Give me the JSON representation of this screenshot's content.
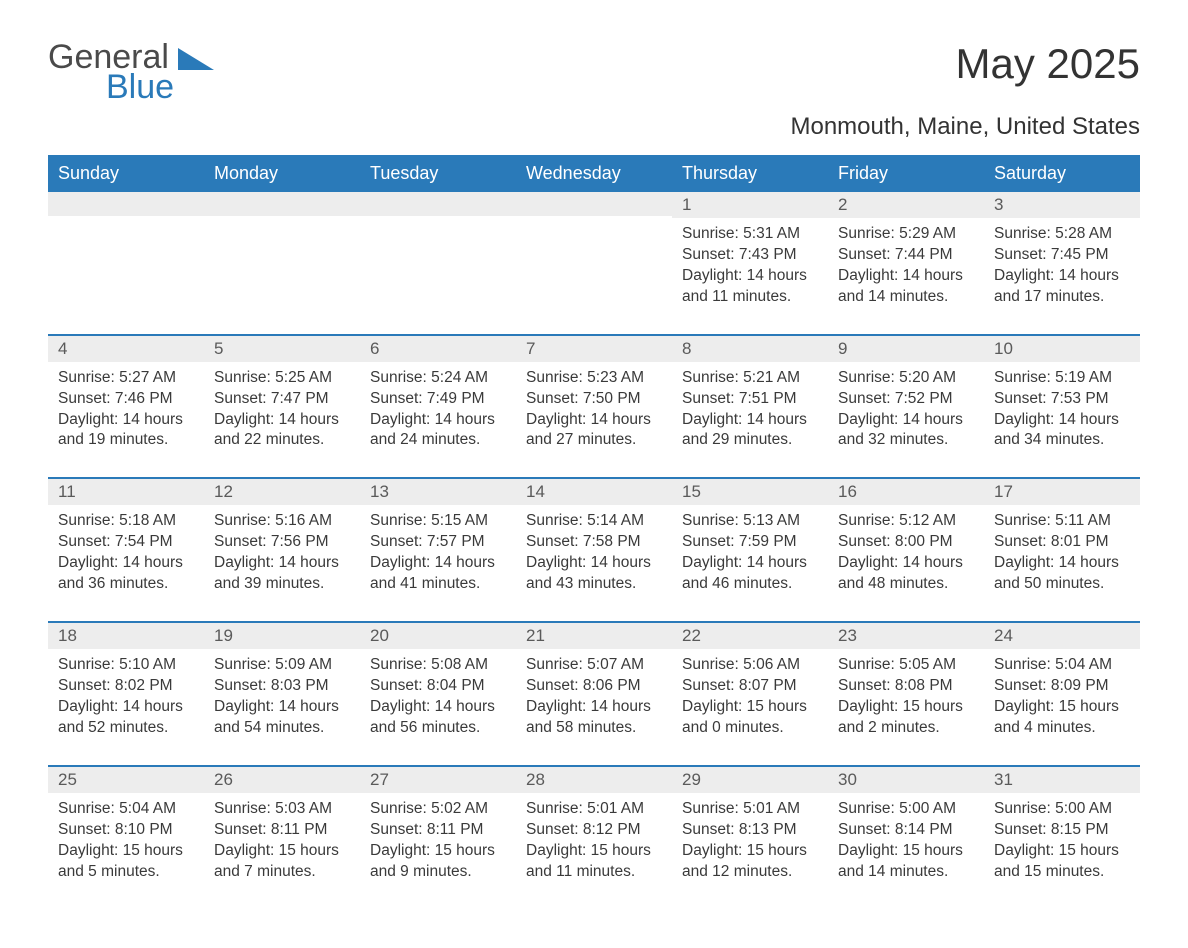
{
  "brand": {
    "word1": "General",
    "word2": "Blue"
  },
  "title": "May 2025",
  "location": "Monmouth, Maine, United States",
  "colors": {
    "header_bg": "#2a7ab9",
    "header_text": "#ffffff",
    "daynum_bg": "#ededed",
    "daynum_text": "#5a5a5a",
    "body_text": "#3a3a3a",
    "page_bg": "#ffffff",
    "row_border": "#2a7ab9"
  },
  "typography": {
    "title_fontsize": 42,
    "location_fontsize": 24,
    "header_fontsize": 18,
    "daynum_fontsize": 17,
    "body_fontsize": 15.5
  },
  "labels": {
    "sunrise": "Sunrise:",
    "sunset": "Sunset:",
    "daylight": "Daylight:"
  },
  "weekdays": [
    "Sunday",
    "Monday",
    "Tuesday",
    "Wednesday",
    "Thursday",
    "Friday",
    "Saturday"
  ],
  "leading_blanks": 4,
  "days": [
    {
      "n": 1,
      "sunrise": "5:31 AM",
      "sunset": "7:43 PM",
      "daylight": "14 hours and 11 minutes."
    },
    {
      "n": 2,
      "sunrise": "5:29 AM",
      "sunset": "7:44 PM",
      "daylight": "14 hours and 14 minutes."
    },
    {
      "n": 3,
      "sunrise": "5:28 AM",
      "sunset": "7:45 PM",
      "daylight": "14 hours and 17 minutes."
    },
    {
      "n": 4,
      "sunrise": "5:27 AM",
      "sunset": "7:46 PM",
      "daylight": "14 hours and 19 minutes."
    },
    {
      "n": 5,
      "sunrise": "5:25 AM",
      "sunset": "7:47 PM",
      "daylight": "14 hours and 22 minutes."
    },
    {
      "n": 6,
      "sunrise": "5:24 AM",
      "sunset": "7:49 PM",
      "daylight": "14 hours and 24 minutes."
    },
    {
      "n": 7,
      "sunrise": "5:23 AM",
      "sunset": "7:50 PM",
      "daylight": "14 hours and 27 minutes."
    },
    {
      "n": 8,
      "sunrise": "5:21 AM",
      "sunset": "7:51 PM",
      "daylight": "14 hours and 29 minutes."
    },
    {
      "n": 9,
      "sunrise": "5:20 AM",
      "sunset": "7:52 PM",
      "daylight": "14 hours and 32 minutes."
    },
    {
      "n": 10,
      "sunrise": "5:19 AM",
      "sunset": "7:53 PM",
      "daylight": "14 hours and 34 minutes."
    },
    {
      "n": 11,
      "sunrise": "5:18 AM",
      "sunset": "7:54 PM",
      "daylight": "14 hours and 36 minutes."
    },
    {
      "n": 12,
      "sunrise": "5:16 AM",
      "sunset": "7:56 PM",
      "daylight": "14 hours and 39 minutes."
    },
    {
      "n": 13,
      "sunrise": "5:15 AM",
      "sunset": "7:57 PM",
      "daylight": "14 hours and 41 minutes."
    },
    {
      "n": 14,
      "sunrise": "5:14 AM",
      "sunset": "7:58 PM",
      "daylight": "14 hours and 43 minutes."
    },
    {
      "n": 15,
      "sunrise": "5:13 AM",
      "sunset": "7:59 PM",
      "daylight": "14 hours and 46 minutes."
    },
    {
      "n": 16,
      "sunrise": "5:12 AM",
      "sunset": "8:00 PM",
      "daylight": "14 hours and 48 minutes."
    },
    {
      "n": 17,
      "sunrise": "5:11 AM",
      "sunset": "8:01 PM",
      "daylight": "14 hours and 50 minutes."
    },
    {
      "n": 18,
      "sunrise": "5:10 AM",
      "sunset": "8:02 PM",
      "daylight": "14 hours and 52 minutes."
    },
    {
      "n": 19,
      "sunrise": "5:09 AM",
      "sunset": "8:03 PM",
      "daylight": "14 hours and 54 minutes."
    },
    {
      "n": 20,
      "sunrise": "5:08 AM",
      "sunset": "8:04 PM",
      "daylight": "14 hours and 56 minutes."
    },
    {
      "n": 21,
      "sunrise": "5:07 AM",
      "sunset": "8:06 PM",
      "daylight": "14 hours and 58 minutes."
    },
    {
      "n": 22,
      "sunrise": "5:06 AM",
      "sunset": "8:07 PM",
      "daylight": "15 hours and 0 minutes."
    },
    {
      "n": 23,
      "sunrise": "5:05 AM",
      "sunset": "8:08 PM",
      "daylight": "15 hours and 2 minutes."
    },
    {
      "n": 24,
      "sunrise": "5:04 AM",
      "sunset": "8:09 PM",
      "daylight": "15 hours and 4 minutes."
    },
    {
      "n": 25,
      "sunrise": "5:04 AM",
      "sunset": "8:10 PM",
      "daylight": "15 hours and 5 minutes."
    },
    {
      "n": 26,
      "sunrise": "5:03 AM",
      "sunset": "8:11 PM",
      "daylight": "15 hours and 7 minutes."
    },
    {
      "n": 27,
      "sunrise": "5:02 AM",
      "sunset": "8:11 PM",
      "daylight": "15 hours and 9 minutes."
    },
    {
      "n": 28,
      "sunrise": "5:01 AM",
      "sunset": "8:12 PM",
      "daylight": "15 hours and 11 minutes."
    },
    {
      "n": 29,
      "sunrise": "5:01 AM",
      "sunset": "8:13 PM",
      "daylight": "15 hours and 12 minutes."
    },
    {
      "n": 30,
      "sunrise": "5:00 AM",
      "sunset": "8:14 PM",
      "daylight": "15 hours and 14 minutes."
    },
    {
      "n": 31,
      "sunrise": "5:00 AM",
      "sunset": "8:15 PM",
      "daylight": "15 hours and 15 minutes."
    }
  ]
}
